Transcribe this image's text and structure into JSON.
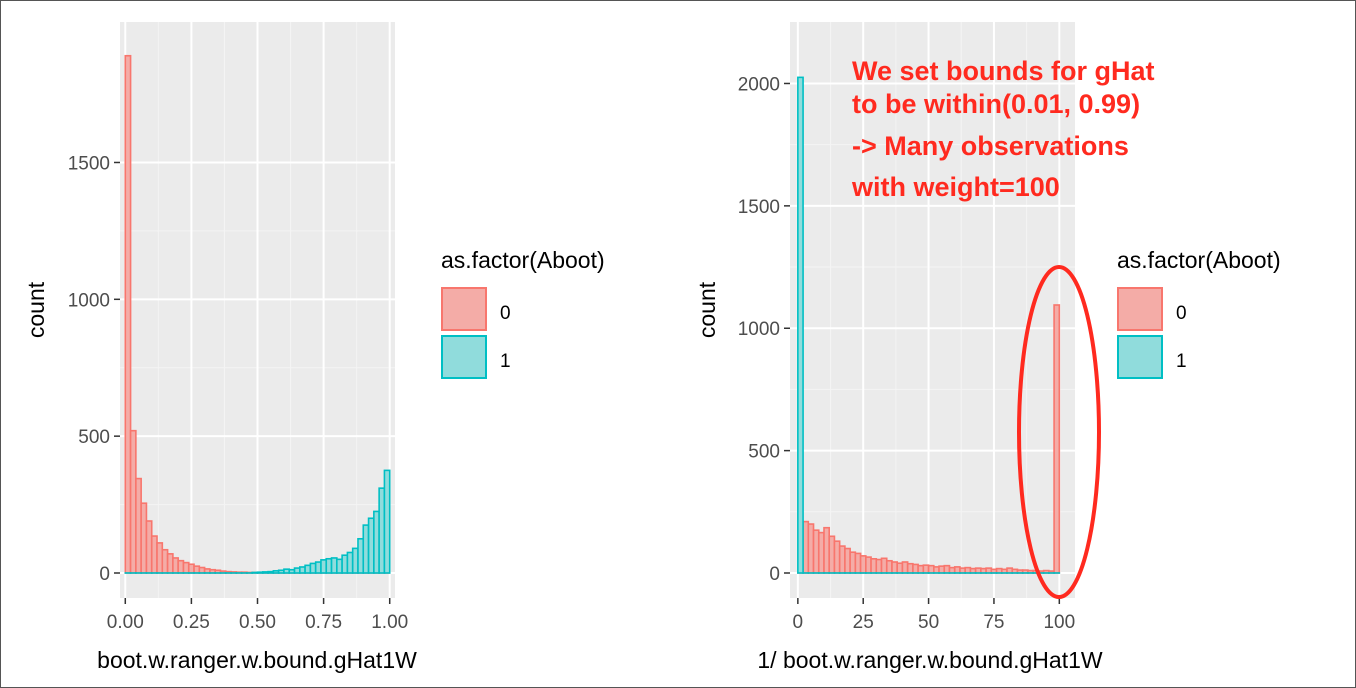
{
  "colors": {
    "panel_bg": "#ebebeb",
    "grid_major": "#ffffff",
    "grid_minor": "#f4f4f4",
    "series0_fill": "#f4aca7",
    "series0_stroke": "#f8766d",
    "series1_fill": "#90dcdc",
    "series1_stroke": "#00bfc4",
    "annotation": "#ff2a1f",
    "frame": "#555555"
  },
  "chart_data": [
    {
      "type": "histogram",
      "xlabel": "boot.w.ranger.w.bound.gHat1W",
      "ylabel": "count",
      "xlim": [
        -0.02,
        1.02
      ],
      "ylim": [
        0,
        1900
      ],
      "x_ticks": [
        0,
        0.25,
        0.5,
        0.75,
        1.0
      ],
      "x_tick_labels": [
        "0.00",
        "0.25",
        "0.50",
        "0.75",
        "1.00"
      ],
      "y_ticks": [
        0,
        500,
        1000,
        1500
      ],
      "y_tick_labels": [
        "0",
        "500",
        "1000",
        "1500"
      ],
      "binwidth": 0.02,
      "bin_starts": [
        0.0,
        0.02,
        0.04,
        0.06,
        0.08,
        0.1,
        0.12,
        0.14,
        0.16,
        0.18,
        0.2,
        0.22,
        0.24,
        0.26,
        0.28,
        0.3,
        0.32,
        0.34,
        0.36,
        0.38,
        0.4,
        0.42,
        0.44,
        0.46,
        0.48,
        0.5,
        0.52,
        0.54,
        0.56,
        0.58,
        0.6,
        0.62,
        0.64,
        0.66,
        0.68,
        0.7,
        0.72,
        0.74,
        0.76,
        0.78,
        0.8,
        0.82,
        0.84,
        0.86,
        0.88,
        0.9,
        0.92,
        0.94,
        0.96,
        0.98
      ],
      "series": [
        {
          "name": "0",
          "values": [
            1890,
            520,
            345,
            255,
            190,
            135,
            110,
            85,
            70,
            55,
            45,
            38,
            32,
            25,
            20,
            15,
            12,
            10,
            7,
            5,
            4,
            3,
            3,
            2,
            2,
            2,
            1,
            1,
            1,
            1,
            0,
            0,
            0,
            0,
            0,
            0,
            0,
            0,
            0,
            0,
            0,
            0,
            0,
            0,
            0,
            0,
            0,
            0,
            0,
            0
          ]
        },
        {
          "name": "1",
          "values": [
            0,
            0,
            0,
            0,
            0,
            0,
            0,
            0,
            0,
            0,
            0,
            0,
            0,
            0,
            0,
            0,
            0,
            0,
            0,
            0,
            0,
            0,
            0,
            0,
            2,
            3,
            4,
            5,
            8,
            10,
            14,
            12,
            18,
            22,
            28,
            35,
            40,
            48,
            52,
            55,
            50,
            65,
            75,
            90,
            125,
            175,
            200,
            225,
            310,
            375
          ]
        }
      ],
      "legend": {
        "title": "as.factor(Aboot)",
        "entries": [
          "0",
          "1"
        ]
      }
    },
    {
      "type": "histogram",
      "xlabel": "1/ boot.w.ranger.w.bound.gHat1W",
      "ylabel": "count",
      "xlim": [
        -3,
        106
      ],
      "ylim": [
        0,
        2100
      ],
      "x_ticks": [
        0,
        25,
        50,
        75,
        100
      ],
      "x_tick_labels": [
        "0",
        "25",
        "50",
        "75",
        "100"
      ],
      "y_ticks": [
        0,
        500,
        1000,
        1500,
        2000
      ],
      "y_tick_labels": [
        "0",
        "500",
        "1000",
        "1500",
        "2000"
      ],
      "binwidth": 2,
      "bin_starts": [
        0,
        2,
        4,
        6,
        8,
        10,
        12,
        14,
        16,
        18,
        20,
        22,
        24,
        26,
        28,
        30,
        32,
        34,
        36,
        38,
        40,
        42,
        44,
        46,
        48,
        50,
        52,
        54,
        56,
        58,
        60,
        62,
        64,
        66,
        68,
        70,
        72,
        74,
        76,
        78,
        80,
        82,
        84,
        86,
        88,
        90,
        92,
        94,
        96,
        98
      ],
      "series": [
        {
          "name": "0",
          "values": [
            0,
            210,
            200,
            175,
            165,
            185,
            150,
            130,
            110,
            100,
            85,
            80,
            70,
            65,
            58,
            55,
            60,
            50,
            45,
            40,
            45,
            38,
            35,
            30,
            32,
            30,
            25,
            28,
            30,
            22,
            25,
            20,
            22,
            18,
            20,
            18,
            20,
            15,
            18,
            15,
            20,
            15,
            12,
            12,
            10,
            10,
            8,
            10,
            8,
            1095
          ]
        },
        {
          "name": "1",
          "values": [
            2025,
            0,
            0,
            0,
            0,
            0,
            0,
            0,
            0,
            0,
            0,
            0,
            0,
            0,
            0,
            0,
            0,
            0,
            0,
            0,
            0,
            0,
            0,
            0,
            0,
            0,
            0,
            0,
            0,
            0,
            0,
            0,
            0,
            0,
            0,
            0,
            0,
            0,
            0,
            0,
            0,
            0,
            0,
            0,
            0,
            0,
            0,
            0,
            0,
            0
          ]
        }
      ],
      "legend": {
        "title": "as.factor(Aboot)",
        "entries": [
          "0",
          "1"
        ]
      },
      "annotation": {
        "lines": [
          "We set bounds for gHat",
          "to be within(0.01, 0.99)",
          "-> Many observations",
          "with weight=100"
        ],
        "highlight_x_range": [
          95,
          106
        ],
        "highlight_y_range": [
          0,
          1190
        ]
      }
    }
  ]
}
